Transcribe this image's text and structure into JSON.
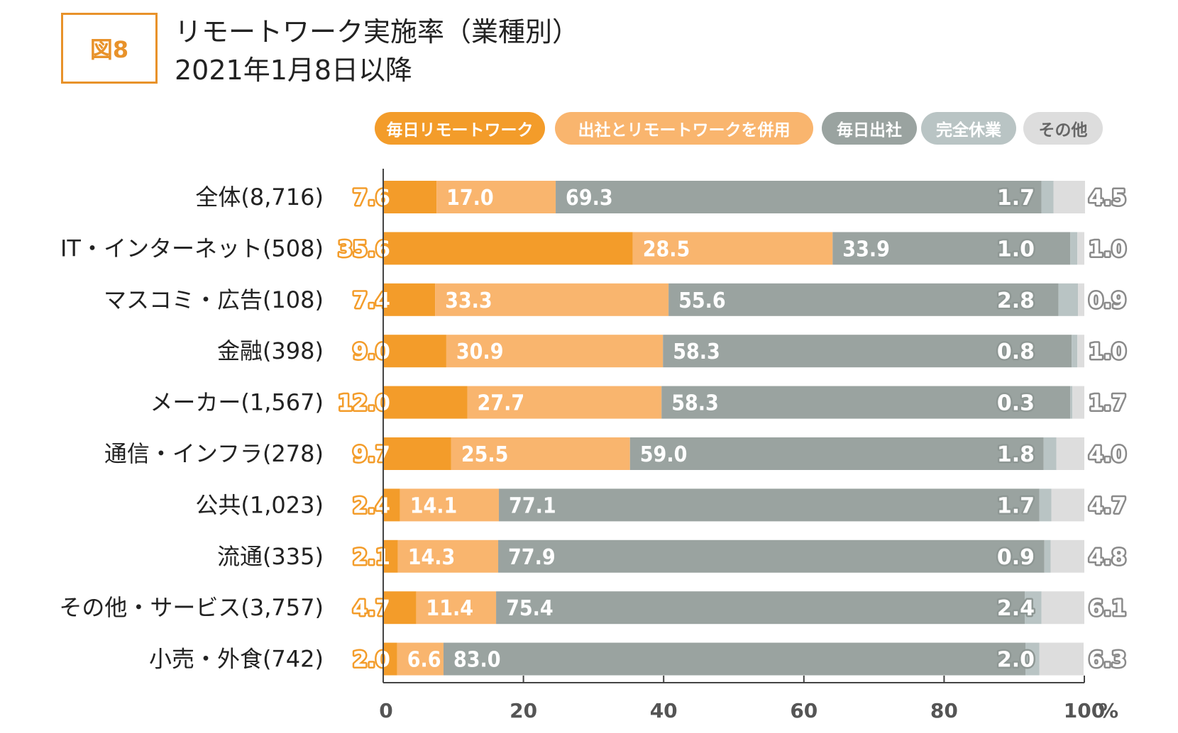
{
  "figure_label": "図8",
  "title_line1": "リモートワーク実施率（業種別）",
  "title_line2": "2021年1月8日以降",
  "chart_data": {
    "type": "bar",
    "orientation": "horizontal",
    "stacked": true,
    "title": "リモートワーク実施率（業種別） 2021年1月8日以降",
    "unit": "%",
    "xlim": [
      0,
      100
    ],
    "xticks": [
      0,
      20,
      40,
      60,
      80,
      100
    ],
    "legend_position": "top",
    "categories": [
      "全体(8,716)",
      "IT・インターネット(508)",
      "マスコミ・広告(108)",
      "金融(398)",
      "メーカー(1,567)",
      "通信・インフラ(278)",
      "公共(1,023)",
      "流通(335)",
      "その他・サービス(3,757)",
      "小売・外食(742)"
    ],
    "series": [
      {
        "name": "毎日リモートワーク",
        "color": "#f39c2a",
        "values": [
          7.6,
          35.6,
          7.4,
          9.0,
          12.0,
          9.7,
          2.4,
          2.1,
          4.7,
          2.0
        ],
        "labels": [
          "7.6",
          "35.6",
          "7.4",
          "9.0",
          "12.0",
          "9.7",
          "2.4",
          "2.1",
          "4.7",
          "2.0"
        ]
      },
      {
        "name": "出社とリモートワークを併用",
        "color": "#f9b56e",
        "values": [
          17.0,
          28.5,
          33.3,
          30.9,
          27.7,
          25.5,
          14.1,
          14.3,
          11.4,
          6.6
        ],
        "labels": [
          "17.0",
          "28.5",
          "33.3",
          "30.9",
          "27.7",
          "25.5",
          "14.1",
          "14.3",
          "11.4",
          "6.6"
        ]
      },
      {
        "name": "毎日出社",
        "color": "#9aa3a0",
        "values": [
          69.3,
          33.9,
          55.6,
          58.3,
          58.3,
          59.0,
          77.1,
          77.9,
          75.4,
          83.0
        ],
        "labels": [
          "69.3",
          "33.9",
          "55.6",
          "58.3",
          "58.3",
          "59.0",
          "77.1",
          "77.9",
          "75.4",
          "83.0"
        ]
      },
      {
        "name": "完全休業",
        "color": "#b9c4c4",
        "values": [
          1.7,
          1.0,
          2.8,
          0.8,
          0.3,
          1.8,
          1.7,
          0.9,
          2.4,
          2.0
        ],
        "labels": [
          "1.7",
          "1.0",
          "2.8",
          "0.8",
          "0.3",
          "1.8",
          "1.7",
          "0.9",
          "2.4",
          "2.0"
        ]
      },
      {
        "name": "その他",
        "color": "#dddddd",
        "values": [
          4.5,
          1.0,
          0.9,
          1.0,
          1.7,
          4.0,
          4.7,
          4.8,
          6.1,
          6.3
        ],
        "labels": [
          "4.5",
          "1.0",
          "0.9",
          "1.0",
          "1.7",
          "4.0",
          "4.7",
          "4.8",
          "6.1",
          "6.3"
        ]
      }
    ]
  }
}
